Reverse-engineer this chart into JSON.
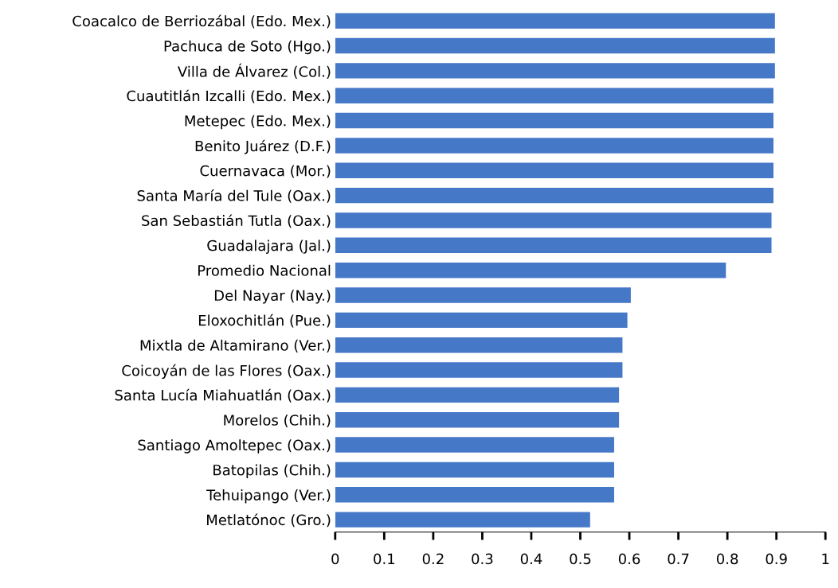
{
  "chart_data": {
    "type": "bar",
    "orientation": "horizontal",
    "categories": [
      "Coacalco de Berriozábal (Edo. Mex.)",
      "Pachuca de Soto (Hgo.)",
      "Villa de Álvarez (Col.)",
      "Cuautitlán Izcalli (Edo. Mex.)",
      "Metepec (Edo. Mex.)",
      "Benito Juárez (D.F.)",
      "Cuernavaca (Mor.)",
      "Santa María del Tule (Oax.)",
      "San Sebastián Tutla (Oax.)",
      "Guadalajara (Jal.)",
      "Promedio Nacional",
      "Del Nayar (Nay.)",
      "Eloxochitlán (Pue.)",
      "Mixtla de Altamirano (Ver.)",
      "Coicoyán de las Flores (Oax.)",
      "Santa Lucía Miahuatlán (Oax.)",
      "Morelos (Chih.)",
      "Santiago Amoltepec (Oax.)",
      "Batopilas (Chih.)",
      "Tehuipango (Ver.)",
      "Metlatónoc (Gro.)"
    ],
    "values": [
      0.897,
      0.897,
      0.897,
      0.894,
      0.894,
      0.894,
      0.894,
      0.894,
      0.89,
      0.89,
      0.797,
      0.603,
      0.596,
      0.586,
      0.586,
      0.579,
      0.579,
      0.569,
      0.569,
      0.569,
      0.52
    ],
    "color": "#4678c8",
    "xlim": [
      0,
      1
    ],
    "xticks": [
      0,
      0.1,
      0.2,
      0.3,
      0.4,
      0.5,
      0.6,
      0.7,
      0.8,
      0.9,
      {
        "value": 1,
        "label": "1"
      }
    ],
    "grid": false
  }
}
